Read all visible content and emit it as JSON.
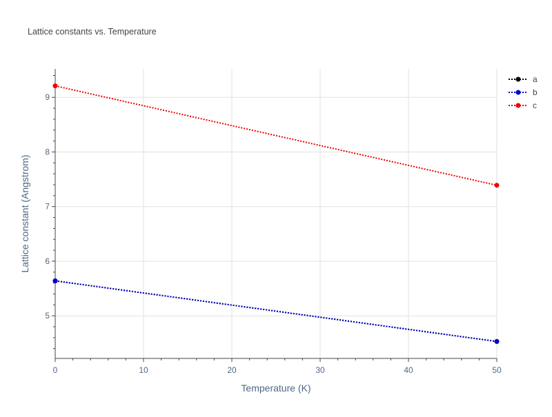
{
  "chart_data": {
    "type": "line",
    "title": "Lattice constants vs. Temperature",
    "xlabel": "Temperature (K)",
    "ylabel": "Lattice constant (Angstrom)",
    "xlim": [
      0,
      50
    ],
    "ylim": [
      4.22,
      9.52
    ],
    "x_ticks": [
      0,
      10,
      20,
      30,
      40,
      50
    ],
    "y_ticks": [
      5,
      6,
      7,
      8,
      9
    ],
    "grid": true,
    "legend_position": "top-right",
    "series": [
      {
        "name": "a",
        "color": "#000000",
        "x": [
          0,
          50
        ],
        "y": [
          5.64,
          4.53
        ]
      },
      {
        "name": "b",
        "color": "#0000cc",
        "x": [
          0,
          50
        ],
        "y": [
          5.64,
          4.53
        ]
      },
      {
        "name": "c",
        "color": "#ee0000",
        "x": [
          0,
          50
        ],
        "y": [
          9.21,
          7.39
        ]
      }
    ]
  }
}
